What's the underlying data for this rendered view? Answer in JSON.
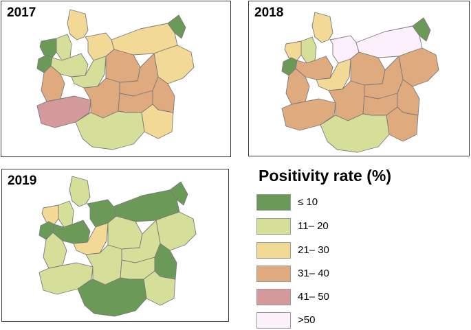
{
  "colors": {
    "c10": "#6b9a58",
    "c20": "#d6df9a",
    "c30": "#f3d996",
    "c40": "#deaa7e",
    "c50": "#d4999a",
    "c50p": "#fbf0fb"
  },
  "panels": [
    {
      "year": "2017"
    },
    {
      "year": "2018"
    },
    {
      "year": "2019"
    }
  ],
  "legend": {
    "title": "Positivity rate (%)",
    "items": [
      {
        "label": "≤ 10",
        "color": "#6b9a58"
      },
      {
        "label": "11– 20",
        "color": "#d6df9a"
      },
      {
        "label": "21– 30",
        "color": "#f3d996"
      },
      {
        "label": "31– 40",
        "color": "#deaa7e"
      },
      {
        "label": "41– 50",
        "color": "#d4999a"
      },
      {
        "label": ">50",
        "color": "#fbf0fb"
      }
    ]
  },
  "region_map": {
    "2017": {
      "nw_1": "c20",
      "nw_2": "c10",
      "w_coast": "c10",
      "n_1": "c30",
      "n_2": "c30",
      "nc": "c20",
      "w_1": "c40",
      "w_2": "c50",
      "c_1": "c40",
      "c_2": "c20",
      "c_3": "c40",
      "e_1": "c30",
      "e_2": "c30",
      "ne": "c10",
      "se_1": "c40",
      "se_2": "c30",
      "s_1": "c20",
      "s_2": "c40",
      "sw": "c40"
    },
    "2018": {
      "nw_1": "c20",
      "nw_2": "c30",
      "w_coast": "c10",
      "n_1": "c30",
      "n_2": "c50p",
      "nc": "c40",
      "w_1": "c40",
      "w_2": "c40",
      "c_1": "c40",
      "c_2": "c30",
      "c_3": "c40",
      "e_1": "c50p",
      "e_2": "c40",
      "ne": "c10",
      "se_1": "c40",
      "se_2": "c40",
      "s_1": "c20",
      "s_2": "c40",
      "sw": "c40"
    },
    "2019": {
      "nw_1": "c20",
      "nw_2": "c30",
      "w_coast": "c10",
      "n_1": "c20",
      "n_2": "c10",
      "nc": "c10",
      "w_1": "c20",
      "w_2": "c20",
      "c_1": "c20",
      "c_2": "c30",
      "c_3": "c20",
      "e_1": "c10",
      "e_2": "c20",
      "ne": "c10",
      "se_1": "c10",
      "se_2": "c20",
      "s_1": "c10",
      "s_2": "c20",
      "sw": "c20"
    }
  }
}
